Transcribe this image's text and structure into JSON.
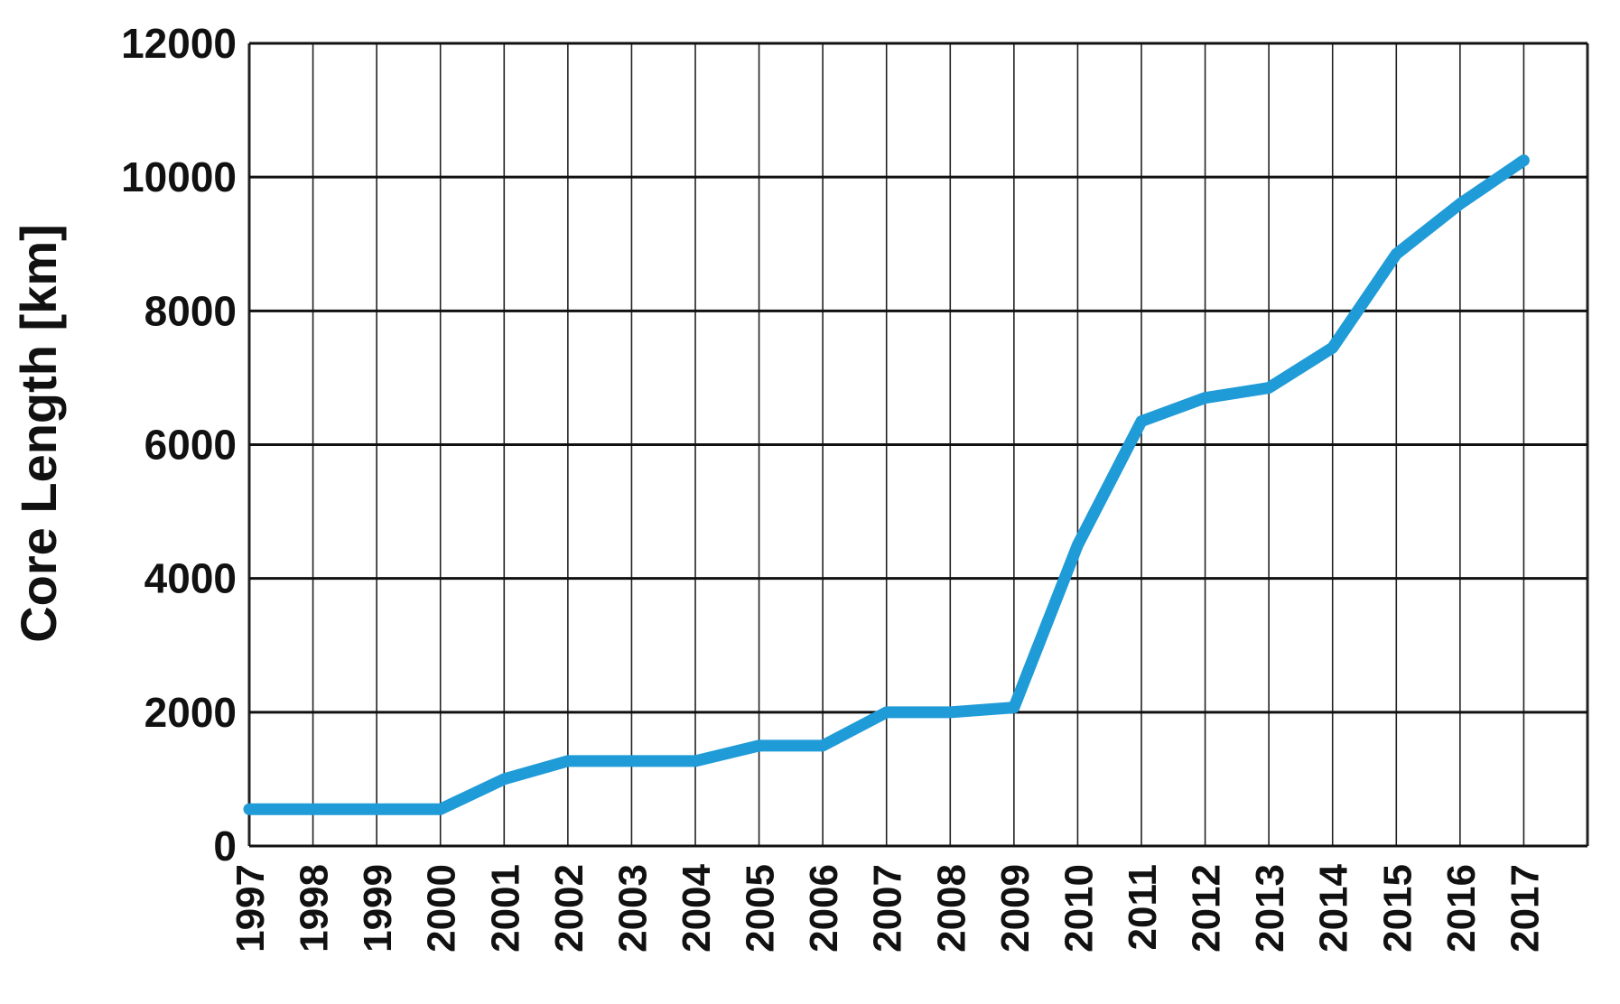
{
  "chart_data": {
    "type": "line",
    "title": "",
    "xlabel": "",
    "ylabel": "Core Length [km]",
    "x": [
      "1997",
      "1998",
      "1999",
      "2000",
      "2001",
      "2002",
      "2003",
      "2004",
      "2005",
      "2006",
      "2007",
      "2008",
      "2009",
      "2010",
      "2011",
      "2012",
      "2013",
      "2014",
      "2015",
      "2016",
      "2017"
    ],
    "series": [
      {
        "values": [
          550,
          550,
          550,
          550,
          1000,
          1270,
          1270,
          1270,
          1500,
          1500,
          2000,
          2000,
          2070,
          4500,
          6350,
          6700,
          6850,
          7450,
          8850,
          9600,
          10250
        ],
        "color": "#1f9bd7"
      }
    ],
    "ylim": [
      0,
      12000
    ],
    "yticks": [
      "0",
      "2000",
      "4000",
      "6000",
      "8000",
      "10000",
      "12000"
    ],
    "grid": true,
    "legend": "none"
  }
}
